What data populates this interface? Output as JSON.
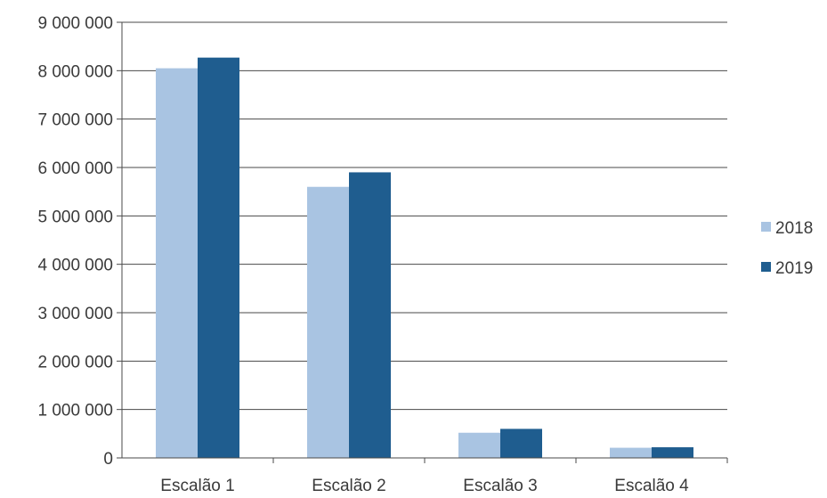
{
  "chart_data": {
    "type": "bar",
    "title": "",
    "xlabel": "",
    "ylabel": "",
    "categories": [
      "Escalão 1",
      "Escalão 2",
      "Escalão 3",
      "Escalão 4"
    ],
    "series": [
      {
        "name": "2018",
        "color": "#a9c4e2",
        "values": [
          8050000,
          5600000,
          520000,
          210000
        ]
      },
      {
        "name": "2019",
        "color": "#1f5d8f",
        "values": [
          8270000,
          5900000,
          600000,
          220000
        ]
      }
    ],
    "ylim": [
      0,
      9000000
    ],
    "yticks": [
      0,
      1000000,
      2000000,
      3000000,
      4000000,
      5000000,
      6000000,
      7000000,
      8000000,
      9000000
    ],
    "ytick_labels": [
      "0",
      "1 000 000",
      "2 000 000",
      "3 000 000",
      "4 000 000",
      "5 000 000",
      "6 000 000",
      "7 000 000",
      "8 000 000",
      "9 000 000"
    ],
    "grid": true,
    "legend_position": "right"
  }
}
